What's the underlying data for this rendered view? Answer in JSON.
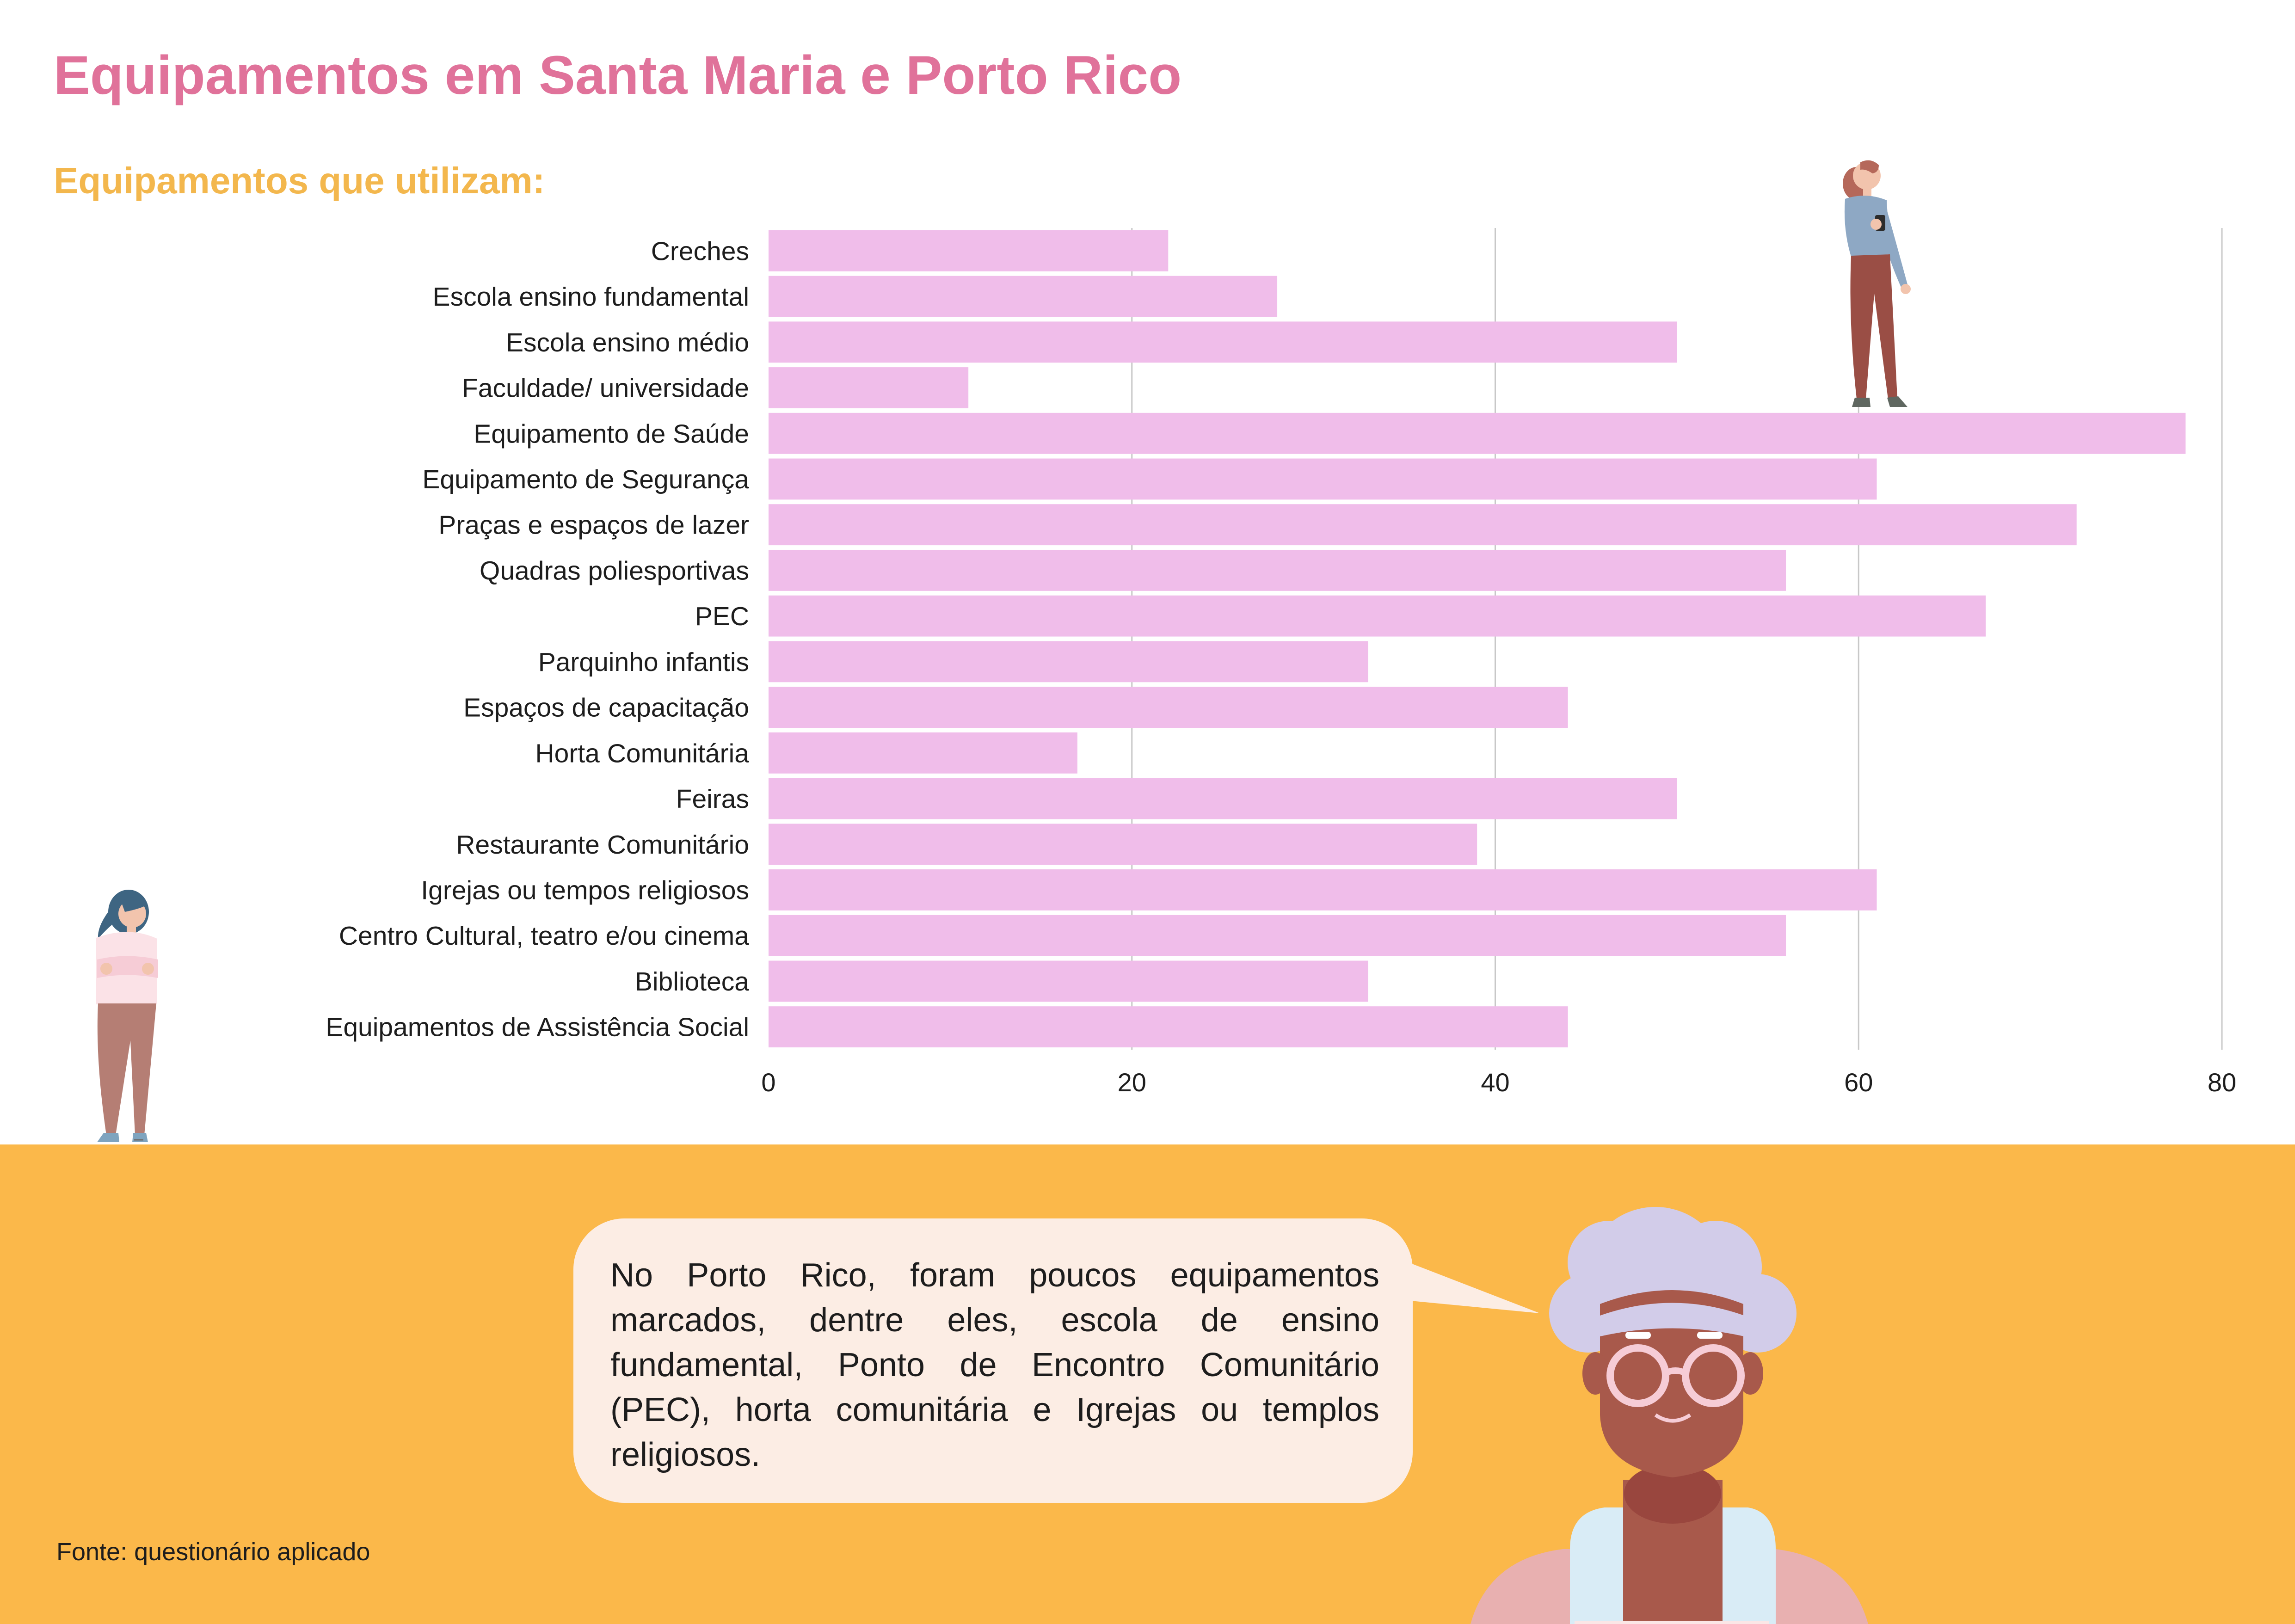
{
  "header": {
    "title": "Equipamentos em Santa Maria e Porto Rico",
    "subtitle": "Equipamentos que utilizam:"
  },
  "colors": {
    "title": "#e0729a",
    "subtitle": "#f3b74d",
    "bar": "#f0bdea",
    "footer_background": "#fbb84a",
    "bubble_background": "#fcede4"
  },
  "chart_data": {
    "type": "bar",
    "orientation": "horizontal",
    "categories": [
      "Creches",
      "Escola ensino fundamental",
      "Escola ensino médio",
      "Faculdade/ universidade",
      "Equipamento de Saúde",
      "Equipamento de Segurança",
      "Praças e espaços de lazer",
      "Quadras poliesportivas",
      "PEC",
      "Parquinho infantis",
      "Espaços de capacitação",
      "Horta Comunitária",
      "Feiras",
      "Restaurante Comunitário",
      "Igrejas ou tempos religiosos",
      "Centro Cultural, teatro e/ou cinema",
      "Biblioteca",
      "Equipamentos de Assistência Social"
    ],
    "values": [
      22,
      28,
      50,
      11,
      78,
      61,
      72,
      56,
      67,
      33,
      44,
      17,
      50,
      39,
      61,
      56,
      33,
      44
    ],
    "xlim": [
      0,
      80
    ],
    "xticks": [
      "0",
      "20",
      "40",
      "60",
      "80"
    ],
    "xlabel": "",
    "ylabel": "",
    "grid": "vertical"
  },
  "callout": {
    "text": "No Porto Rico, foram poucos equipamentos marcados, dentre eles, escola de ensino fundamental, Ponto de Encontro Comunitário (PEC), horta comunitária e Igrejas ou templos religiosos."
  },
  "footer": {
    "source": "Fonte: questionário aplicado"
  },
  "illustrations": [
    "woman-with-phone-icon",
    "woman-arms-crossed-icon",
    "elderly-woman-with-glasses-icon"
  ]
}
